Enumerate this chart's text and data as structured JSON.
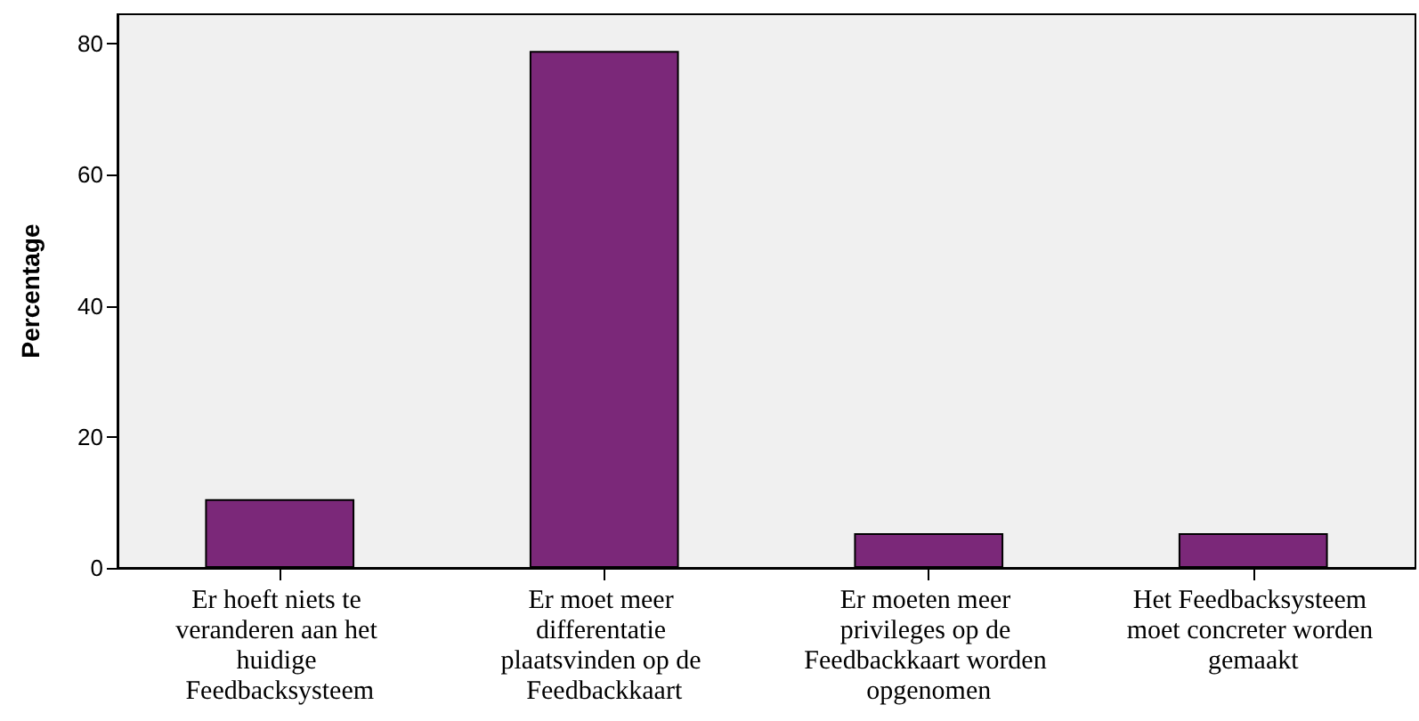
{
  "chart_data": {
    "type": "bar",
    "ylabel": "Percentage",
    "categories": [
      "Er hoeft niets te veranderen aan het huidige Feedbacksysteem",
      "Er moet meer differentatie plaatsvinden op de Feedbackkaart",
      "Er moeten meer privileges op de Feedbackkaart worden opgenomen",
      "Het Feedbacksysteem moet concreter worden gemaakt"
    ],
    "values": [
      10.5,
      78.9,
      5.3,
      5.3
    ],
    "color": "#7b2879",
    "ylim": [
      0,
      84.5
    ],
    "yticks": [
      0,
      20,
      40,
      60,
      80
    ],
    "grid": false
  }
}
